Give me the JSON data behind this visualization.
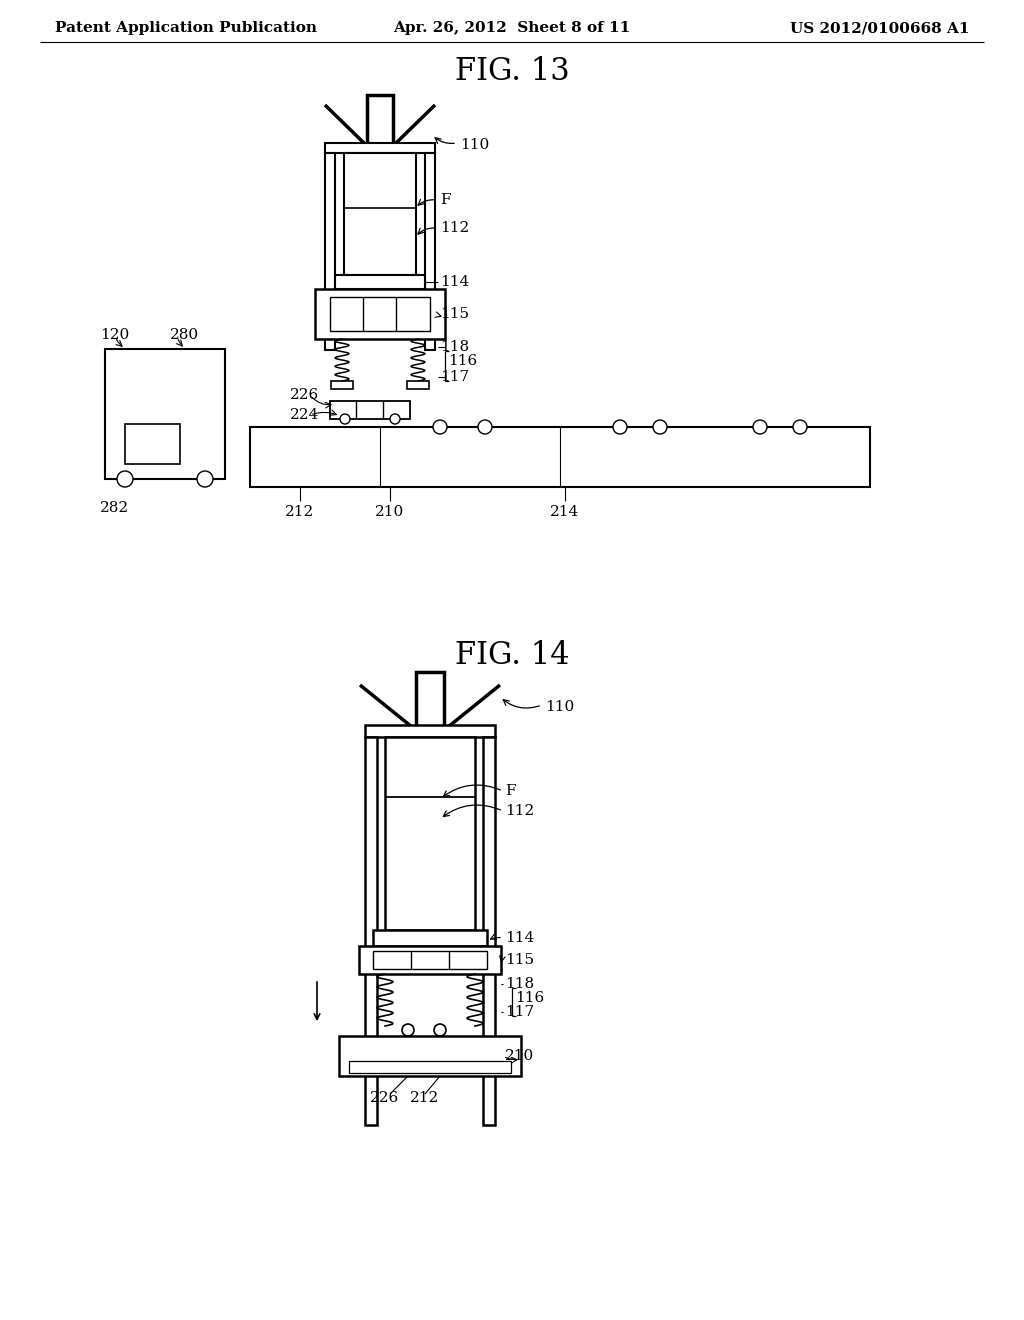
{
  "background_color": "#ffffff",
  "header_left": "Patent Application Publication",
  "header_center": "Apr. 26, 2012  Sheet 8 of 11",
  "header_right": "US 2012/0100668 A1",
  "fig13_title": "FIG. 13",
  "fig14_title": "FIG. 14",
  "line_color": "#000000",
  "lw": 1.5,
  "tlw": 2.5,
  "label_fs": 11,
  "title_fs": 22,
  "header_fs": 11
}
